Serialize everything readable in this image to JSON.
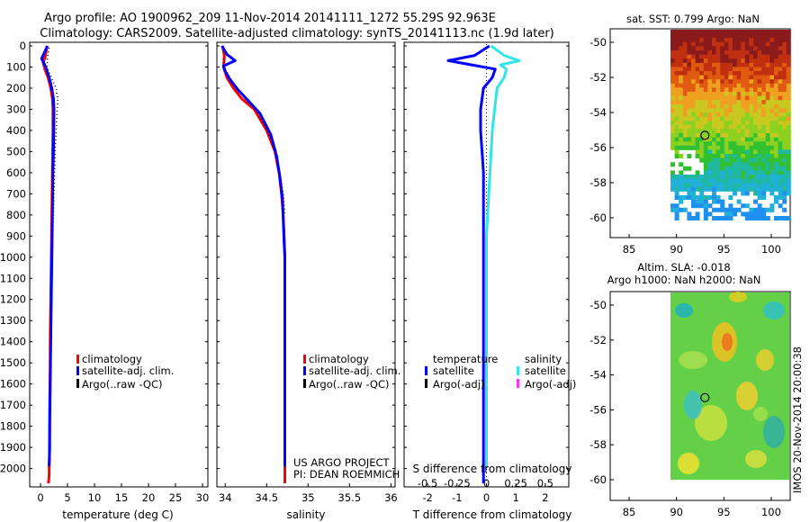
{
  "header": {
    "title_line1": "Argo profile: AO 1900962_209 11-Nov-2014 20141111_1272 55.29S 92.963E",
    "title_line2": "Climatology: CARS2009. Satellite-adjusted climatology: synTS_20141113.nc (1.9d later)"
  },
  "colors": {
    "climatology": "#ff0000",
    "satellite_clim": "#0000ff",
    "argo": "#000000",
    "salinity_satellite": "#33e5e5",
    "salinity_argo": "#ff33ff"
  },
  "depth_axis": {
    "ticks": [
      "0",
      "100",
      "200",
      "300",
      "400",
      "500",
      "600",
      "700",
      "800",
      "900",
      "1000",
      "1100",
      "1200",
      "1300",
      "1400",
      "1500",
      "1600",
      "1700",
      "1800",
      "1900",
      "2000"
    ],
    "ylim": [
      0,
      2070
    ]
  },
  "temp_panel": {
    "xlabel": "temperature (deg C)",
    "xticks": [
      "0",
      "5",
      "10",
      "15",
      "20",
      "25",
      "30"
    ],
    "xlim": [
      -2,
      31
    ],
    "legend": [
      "climatology",
      "satellite-adj. clim.",
      "Argo(..raw -QC)"
    ]
  },
  "sal_panel": {
    "xlabel": "salinity",
    "xticks": [
      "34",
      "34.5",
      "35",
      "35.5",
      "36"
    ],
    "xlim": [
      33.9,
      36.05
    ],
    "legend": [
      "climatology",
      "satellite-adj. clim.",
      "Argo(..raw -QC)"
    ],
    "credit1": "US ARGO PROJECT",
    "credit2": "PI: DEAN ROEMMICH"
  },
  "diff_panel": {
    "xlabel": "T difference from climatology",
    "top_xlabel": "S difference from climatology",
    "xticks": [
      "-2",
      "-1",
      "0",
      "1",
      "2"
    ],
    "top_xticks": [
      "-0.5",
      "-0.25",
      "0",
      "0.25",
      "0.5"
    ],
    "xlim": [
      -2.8,
      2.8
    ],
    "legend_temp_title": "temperature",
    "legend_sal_title": "salinity",
    "legend_temp": [
      "satellite",
      "Argo(-adj)"
    ],
    "legend_sal": [
      "satellite",
      "Argo(-adj)"
    ]
  },
  "sst_map": {
    "title": "sat. SST: 0.799 Argo: NaN",
    "yticks": [
      "-50",
      "-52",
      "-54",
      "-56",
      "-58",
      "-60"
    ],
    "xticks": [
      "85",
      "90",
      "95",
      "100"
    ]
  },
  "sla_map": {
    "title1": "Altim. SLA: -0.018",
    "title2": "Argo h1000: NaN h2000: NaN",
    "yticks": [
      "-50",
      "-52",
      "-54",
      "-56",
      "-58",
      "-60"
    ],
    "xticks": [
      "85",
      "90",
      "95",
      "100"
    ],
    "stamp": "IMOS 20-Nov-2014 20:00:38"
  },
  "chart_data": [
    {
      "type": "line",
      "title": "",
      "xlabel": "temperature (deg C)",
      "ylabel": "",
      "xlim": [
        -2,
        31
      ],
      "ylim": [
        0,
        2070
      ],
      "y_inverted": true,
      "grid": false,
      "legend_placement": "lower-middle",
      "series": [
        {
          "name": "climatology",
          "color": "#ff0000",
          "x": [
            1.2,
            0.9,
            0.5,
            0.8,
            1.4,
            1.9,
            2.2,
            2.3,
            2.3,
            2.25,
            2.2,
            2.15,
            2.1,
            2.05,
            2.0,
            1.95,
            1.9,
            1.85,
            1.8,
            1.8,
            1.75,
            1.7,
            1.7,
            1.65,
            1.65,
            1.6,
            1.6,
            1.55,
            1.5,
            1.45,
            1.45
          ],
          "y": [
            0,
            50,
            80,
            110,
            150,
            200,
            250,
            300,
            400,
            500,
            600,
            700,
            800,
            900,
            1000,
            1100,
            1200,
            1300,
            1400,
            1500,
            1600,
            1700,
            1800,
            1900,
            1950,
            2000,
            2030,
            2050,
            2060,
            2070,
            2070
          ]
        },
        {
          "name": "satellite-adj. clim.",
          "color": "#0000ff",
          "x": [
            1.3,
            0.2,
            0.7,
            1.1,
            1.6,
            2.1,
            2.4,
            2.5,
            2.45,
            2.4,
            2.3,
            2.25,
            2.2,
            2.15,
            2.1,
            2.05,
            2.0,
            1.95,
            1.9,
            1.85,
            1.8,
            1.75,
            1.7,
            1.7,
            1.65,
            1.6
          ],
          "y": [
            0,
            60,
            85,
            110,
            150,
            200,
            250,
            300,
            400,
            500,
            600,
            700,
            800,
            900,
            1000,
            1100,
            1200,
            1300,
            1400,
            1500,
            1600,
            1700,
            1800,
            1900,
            1950,
            1990
          ]
        },
        {
          "name": "Argo(..raw -QC)",
          "color": "#000000",
          "style": "dotted",
          "x": [
            1.6,
            1.3,
            1.2,
            2.0,
            2.9,
            3.2,
            3.1,
            2.9,
            2.7,
            2.6,
            2.5,
            2.4,
            2.3,
            2.2,
            2.1,
            2.0,
            1.9
          ],
          "y": [
            10,
            60,
            100,
            150,
            200,
            250,
            300,
            400,
            500,
            600,
            700,
            800,
            900,
            1000,
            1200,
            1400,
            1600
          ]
        }
      ]
    },
    {
      "type": "line",
      "title": "",
      "xlabel": "salinity",
      "ylabel": "",
      "xlim": [
        33.9,
        36.05
      ],
      "ylim": [
        0,
        2070
      ],
      "y_inverted": true,
      "grid": false,
      "legend_placement": "lower-middle",
      "series": [
        {
          "name": "climatology",
          "color": "#ff0000",
          "x": [
            33.97,
            33.99,
            33.98,
            34.02,
            34.1,
            34.2,
            34.35,
            34.5,
            34.6,
            34.65,
            34.68,
            34.7,
            34.71,
            34.72,
            34.72,
            34.72,
            34.72,
            34.72,
            34.72,
            34.72,
            34.72,
            34.72,
            34.72
          ],
          "y": [
            0,
            50,
            100,
            150,
            200,
            250,
            300,
            400,
            500,
            600,
            700,
            800,
            900,
            1000,
            1100,
            1200,
            1300,
            1400,
            1500,
            1600,
            1800,
            2000,
            2070
          ]
        },
        {
          "name": "satellite-adj. clim.",
          "color": "#0000ff",
          "x": [
            33.96,
            34.02,
            34.12,
            33.98,
            34.0,
            34.06,
            34.16,
            34.28,
            34.42,
            34.55,
            34.62,
            34.66,
            34.69,
            34.7,
            34.71,
            34.72,
            34.72,
            34.72,
            34.72,
            34.72,
            34.72,
            34.72
          ],
          "y": [
            0,
            40,
            70,
            95,
            120,
            160,
            210,
            260,
            320,
            420,
            520,
            620,
            720,
            820,
            920,
            1000,
            1100,
            1200,
            1400,
            1600,
            1800,
            1990
          ]
        },
        {
          "name": "Argo(..raw -QC)",
          "color": "#000000",
          "style": "dotted",
          "x": [
            33.98,
            34.0,
            34.06,
            34.14,
            34.24,
            34.36,
            34.5,
            34.6,
            34.66,
            34.7,
            34.72
          ],
          "y": [
            60,
            110,
            150,
            200,
            250,
            300,
            400,
            500,
            600,
            700,
            800
          ]
        }
      ]
    },
    {
      "type": "line",
      "title": "",
      "xlabel": "T difference from climatology",
      "x2label": "S difference from climatology",
      "xlim": [
        -2.8,
        2.8
      ],
      "x2lim": [
        -0.7,
        0.7
      ],
      "ylim": [
        0,
        2070
      ],
      "y_inverted": true,
      "grid": false,
      "legend_placement": "lower-middle",
      "series": [
        {
          "name": "satellite",
          "group": "temperature",
          "axis": "T",
          "color": "#0000ff",
          "x": [
            0.1,
            -0.4,
            -1.3,
            -0.5,
            0.3,
            0.2,
            -0.1,
            -0.2,
            -0.2,
            -0.15,
            -0.1,
            -0.1,
            -0.1,
            -0.1,
            -0.1,
            -0.1,
            -0.1,
            -0.1,
            -0.1,
            -0.1,
            -0.1,
            -0.1,
            -0.1,
            -0.1
          ],
          "y": [
            0,
            45,
            70,
            90,
            110,
            150,
            200,
            300,
            400,
            500,
            600,
            700,
            800,
            900,
            1000,
            1200,
            1400,
            1500,
            1600,
            1700,
            1800,
            1900,
            2000,
            2070
          ]
        },
        {
          "name": "satellite",
          "group": "salinity",
          "axis": "S",
          "color": "#33e5e5",
          "x": [
            0.04,
            0.15,
            0.28,
            0.12,
            0.17,
            0.15,
            0.09,
            0.07,
            0.05,
            0.04,
            0.03,
            0.02,
            0.01,
            0.0,
            0.0,
            0.0,
            0.0,
            0.0
          ],
          "y": [
            0,
            45,
            70,
            90,
            110,
            150,
            200,
            300,
            400,
            500,
            600,
            700,
            800,
            900,
            1000,
            1400,
            1800,
            2000
          ]
        }
      ]
    }
  ]
}
